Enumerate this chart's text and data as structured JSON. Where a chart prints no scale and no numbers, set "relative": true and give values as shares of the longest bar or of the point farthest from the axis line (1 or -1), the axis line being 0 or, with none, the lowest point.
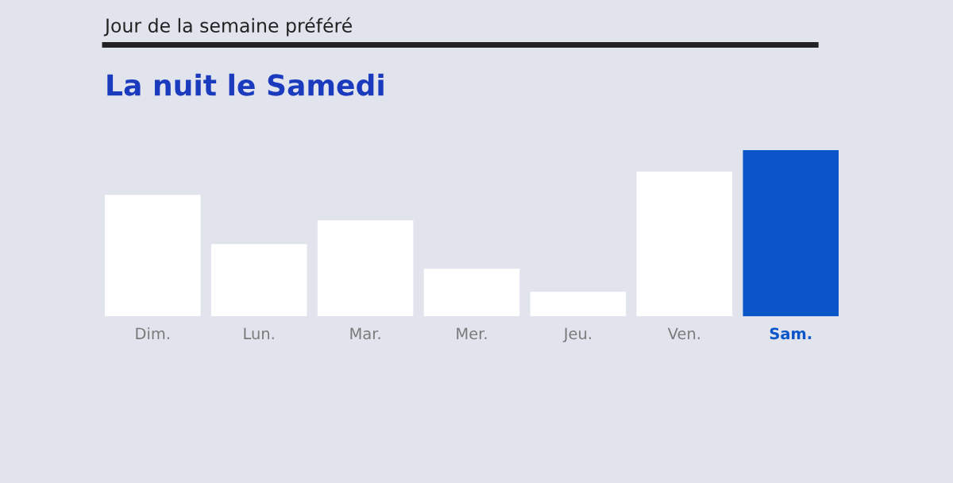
{
  "chart_data": {
    "type": "bar",
    "title": "Jour de la semaine préféré",
    "subtitle": "La nuit le Samedi",
    "categories": [
      "Dim.",
      "Lun.",
      "Mar.",
      "Mer.",
      "Jeu.",
      "Ven.",
      "Sam."
    ],
    "values": [
      0.732,
      0.435,
      0.579,
      0.287,
      0.148,
      0.871,
      1
    ],
    "colors": [
      "#ffffff",
      "#ffffff",
      "#ffffff",
      "#ffffff",
      "#ffffff",
      "#ffffff",
      "#0a56c8"
    ],
    "relative": true,
    "grid": false,
    "legend": false
  }
}
